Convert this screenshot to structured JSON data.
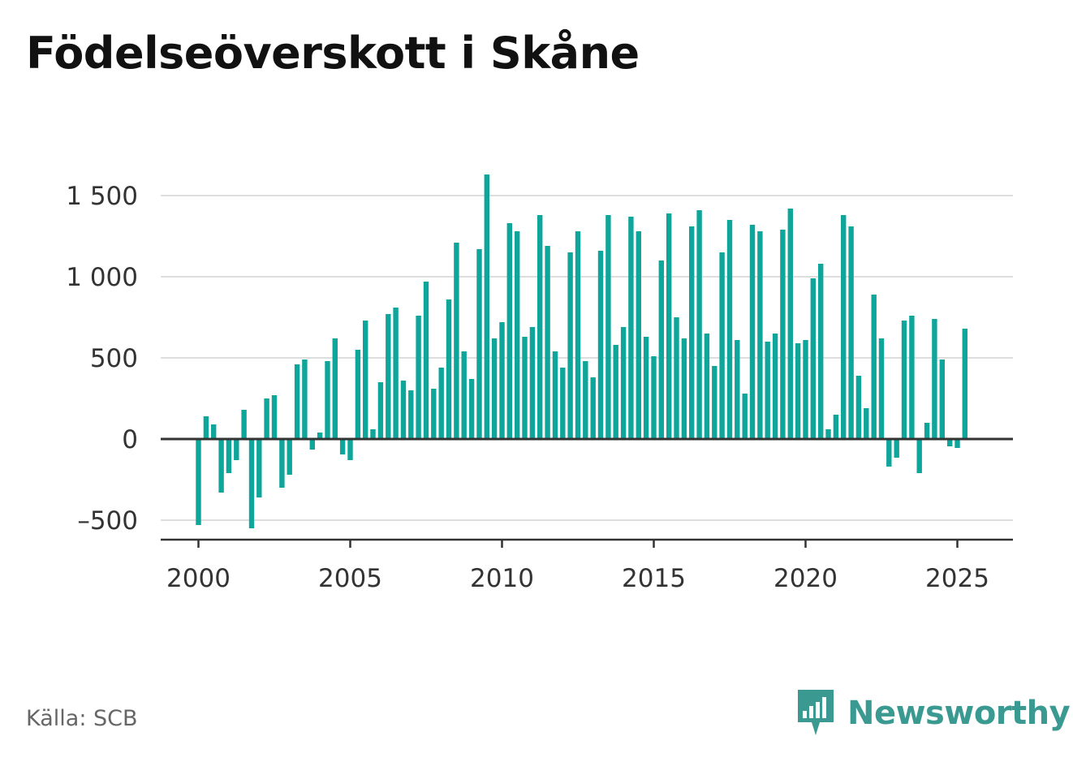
{
  "title": "Födelseöverskott i Skåne",
  "source": "Källa: SCB",
  "brand": "Newsworthy",
  "colors": {
    "bar": "#0ea59b",
    "axis": "#333333",
    "grid": "#dddddd",
    "brand": "#3a9a91"
  },
  "chart_data": {
    "type": "bar",
    "title": "Födelseöverskott i Skåne",
    "xlabel": "",
    "ylabel": "",
    "frequency": "quarterly",
    "x_ticks": [
      2000,
      2005,
      2010,
      2015,
      2020,
      2025
    ],
    "y_ticks": [
      -500,
      0,
      500,
      1000,
      1500
    ],
    "y_tick_labels": [
      "–500",
      "0",
      "500",
      "1 000",
      "1 500"
    ],
    "ylim": [
      -610,
      1640
    ],
    "grid": true,
    "categories": [
      "2000 K1",
      "2000 K2",
      "2000 K3",
      "2000 K4",
      "2001 K1",
      "2001 K2",
      "2001 K3",
      "2001 K4",
      "2002 K1",
      "2002 K2",
      "2002 K3",
      "2002 K4",
      "2003 K1",
      "2003 K2",
      "2003 K3",
      "2003 K4",
      "2004 K1",
      "2004 K2",
      "2004 K3",
      "2004 K4",
      "2005 K1",
      "2005 K2",
      "2005 K3",
      "2005 K4",
      "2006 K1",
      "2006 K2",
      "2006 K3",
      "2006 K4",
      "2007 K1",
      "2007 K2",
      "2007 K3",
      "2007 K4",
      "2008 K1",
      "2008 K2",
      "2008 K3",
      "2008 K4",
      "2009 K1",
      "2009 K2",
      "2009 K3",
      "2009 K4",
      "2010 K1",
      "2010 K2",
      "2010 K3",
      "2010 K4",
      "2011 K1",
      "2011 K2",
      "2011 K3",
      "2011 K4",
      "2012 K1",
      "2012 K2",
      "2012 K3",
      "2012 K4",
      "2013 K1",
      "2013 K2",
      "2013 K3",
      "2013 K4",
      "2014 K1",
      "2014 K2",
      "2014 K3",
      "2014 K4",
      "2015 K1",
      "2015 K2",
      "2015 K3",
      "2015 K4",
      "2016 K1",
      "2016 K2",
      "2016 K3",
      "2016 K4",
      "2017 K1",
      "2017 K2",
      "2017 K3",
      "2017 K4",
      "2018 K1",
      "2018 K2",
      "2018 K3",
      "2018 K4",
      "2019 K1",
      "2019 K2",
      "2019 K3",
      "2019 K4",
      "2020 K1",
      "2020 K2",
      "2020 K3",
      "2020 K4",
      "2021 K1",
      "2021 K2",
      "2021 K3",
      "2021 K4",
      "2022 K1",
      "2022 K2",
      "2022 K3",
      "2022 K4",
      "2023 K1",
      "2023 K2",
      "2023 K3",
      "2023 K4",
      "2024 K1",
      "2024 K2",
      "2024 K3",
      "2024 K4",
      "2025 K1",
      "2025 K2"
    ],
    "values": [
      -530,
      140,
      90,
      -330,
      -210,
      -130,
      180,
      -550,
      -360,
      250,
      270,
      -300,
      -220,
      460,
      490,
      -65,
      40,
      480,
      620,
      -95,
      -130,
      550,
      730,
      60,
      350,
      770,
      810,
      360,
      300,
      760,
      970,
      310,
      440,
      860,
      1210,
      540,
      370,
      1170,
      1630,
      620,
      720,
      1330,
      1280,
      630,
      690,
      1380,
      1190,
      540,
      440,
      1150,
      1280,
      480,
      380,
      1160,
      1380,
      580,
      690,
      1370,
      1280,
      630,
      510,
      1100,
      1390,
      750,
      620,
      1310,
      1410,
      650,
      450,
      1150,
      1350,
      610,
      280,
      1320,
      1280,
      600,
      650,
      1290,
      1420,
      590,
      610,
      990,
      1080,
      60,
      150,
      1380,
      1310,
      390,
      190,
      890,
      620,
      -170,
      -115,
      730,
      760,
      -210,
      100,
      740,
      490,
      -45,
      -55,
      680
    ]
  }
}
